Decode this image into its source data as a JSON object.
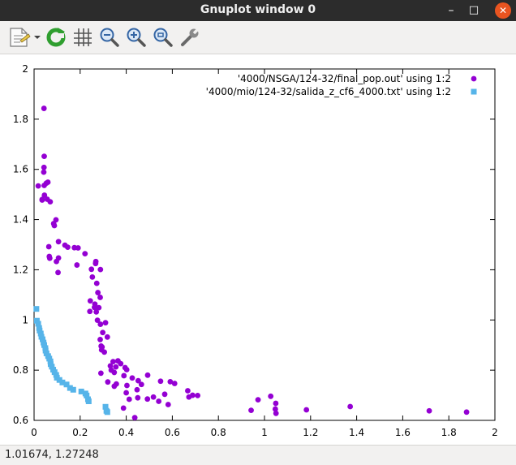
{
  "window": {
    "title": "Gnuplot window 0",
    "minimize_glyph": "–",
    "maximize_glyph": "□",
    "close_glyph": "✕"
  },
  "toolbar": {
    "buttons": [
      {
        "name": "export-menu",
        "icon": "document-export-icon"
      },
      {
        "name": "replot",
        "icon": "refresh-icon"
      },
      {
        "name": "grid",
        "icon": "grid-icon"
      },
      {
        "name": "zoom-prev",
        "icon": "zoom-out-icon"
      },
      {
        "name": "zoom-next",
        "icon": "zoom-in-icon"
      },
      {
        "name": "autoscale",
        "icon": "zoom-fit-icon"
      },
      {
        "name": "settings",
        "icon": "wrench-icon"
      }
    ]
  },
  "status": {
    "coords": "1.01674,  1.27248"
  },
  "colors": {
    "series1": "#9400d3",
    "series2": "#56b4e9",
    "close": "#e95420"
  },
  "chart_data": {
    "type": "scatter",
    "xlim": [
      0,
      2
    ],
    "ylim": [
      0.6,
      2
    ],
    "xticks": [
      0,
      0.2,
      0.4,
      0.6,
      0.8,
      1,
      1.2,
      1.4,
      1.6,
      1.8,
      2
    ],
    "xtick_labels": [
      "0",
      "0.2",
      "0.4",
      "0.6",
      "0.8",
      "1",
      "1.2",
      "1.4",
      "1.6",
      "1.8",
      "2"
    ],
    "yticks": [
      0.6,
      0.8,
      1,
      1.2,
      1.4,
      1.6,
      1.8,
      2
    ],
    "ytick_labels": [
      "0.6",
      "0.8",
      "1",
      "1.2",
      "1.4",
      "1.6",
      "1.8",
      "2"
    ],
    "grid": false,
    "legend_position": "top-right",
    "series": [
      {
        "name": "'4000/NSGA/124-32/final_pop.out' using 1:2",
        "marker": "circle",
        "color": "#9400d3",
        "points": [
          [
            0.043,
            1.843
          ],
          [
            0.044,
            1.652
          ],
          [
            0.043,
            1.608
          ],
          [
            0.042,
            1.589
          ],
          [
            0.018,
            1.534
          ],
          [
            0.053,
            1.545
          ],
          [
            0.044,
            1.536
          ],
          [
            0.06,
            1.549
          ],
          [
            0.045,
            1.497
          ],
          [
            0.035,
            1.478
          ],
          [
            0.057,
            1.481
          ],
          [
            0.07,
            1.471
          ],
          [
            0.035,
            1.48
          ],
          [
            0.095,
            1.399
          ],
          [
            0.085,
            1.384
          ],
          [
            0.088,
            1.376
          ],
          [
            0.064,
            1.292
          ],
          [
            0.106,
            1.312
          ],
          [
            0.134,
            1.298
          ],
          [
            0.146,
            1.29
          ],
          [
            0.066,
            1.253
          ],
          [
            0.068,
            1.246
          ],
          [
            0.106,
            1.247
          ],
          [
            0.097,
            1.233
          ],
          [
            0.191,
            1.287
          ],
          [
            0.175,
            1.288
          ],
          [
            0.104,
            1.189
          ],
          [
            0.186,
            1.219
          ],
          [
            0.221,
            1.264
          ],
          [
            0.268,
            1.233
          ],
          [
            0.267,
            1.225
          ],
          [
            0.249,
            1.202
          ],
          [
            0.288,
            1.201
          ],
          [
            0.253,
            1.171
          ],
          [
            0.272,
            1.146
          ],
          [
            0.277,
            1.109
          ],
          [
            0.287,
            1.09
          ],
          [
            0.244,
            1.076
          ],
          [
            0.264,
            1.063
          ],
          [
            0.262,
            1.05
          ],
          [
            0.281,
            1.049
          ],
          [
            0.27,
            1.032
          ],
          [
            0.242,
            1.034
          ],
          [
            0.275,
            0.999
          ],
          [
            0.288,
            0.983
          ],
          [
            0.31,
            0.989
          ],
          [
            0.298,
            0.95
          ],
          [
            0.318,
            0.932
          ],
          [
            0.287,
            0.922
          ],
          [
            0.291,
            0.896
          ],
          [
            0.293,
            0.881
          ],
          [
            0.305,
            0.872
          ],
          [
            0.295,
            0.892
          ],
          [
            0.364,
            0.837
          ],
          [
            0.343,
            0.834
          ],
          [
            0.331,
            0.817
          ],
          [
            0.335,
            0.8
          ],
          [
            0.355,
            0.813
          ],
          [
            0.348,
            0.791
          ],
          [
            0.376,
            0.826
          ],
          [
            0.395,
            0.81
          ],
          [
            0.29,
            0.788
          ],
          [
            0.39,
            0.778
          ],
          [
            0.402,
            0.802
          ],
          [
            0.32,
            0.753
          ],
          [
            0.357,
            0.745
          ],
          [
            0.426,
            0.769
          ],
          [
            0.452,
            0.758
          ],
          [
            0.403,
            0.739
          ],
          [
            0.4,
            0.71
          ],
          [
            0.447,
            0.722
          ],
          [
            0.493,
            0.78
          ],
          [
            0.466,
            0.743
          ],
          [
            0.348,
            0.736
          ],
          [
            0.413,
            0.684
          ],
          [
            0.45,
            0.69
          ],
          [
            0.549,
            0.756
          ],
          [
            0.591,
            0.754
          ],
          [
            0.61,
            0.747
          ],
          [
            0.567,
            0.704
          ],
          [
            0.518,
            0.693
          ],
          [
            0.492,
            0.685
          ],
          [
            0.541,
            0.676
          ],
          [
            0.582,
            0.663
          ],
          [
            0.667,
            0.718
          ],
          [
            0.688,
            0.7
          ],
          [
            0.672,
            0.693
          ],
          [
            0.71,
            0.699
          ],
          [
            0.388,
            0.649
          ],
          [
            0.437,
            0.611
          ],
          [
            0.942,
            0.64
          ],
          [
            0.972,
            0.682
          ],
          [
            1.027,
            0.696
          ],
          [
            1.049,
            0.668
          ],
          [
            1.047,
            0.645
          ],
          [
            1.05,
            0.628
          ],
          [
            1.182,
            0.642
          ],
          [
            1.372,
            0.655
          ],
          [
            1.715,
            0.638
          ],
          [
            1.877,
            0.633
          ]
        ]
      },
      {
        "name": "'4000/mio/124-32/salida_z_cf6_4000.txt' using 1:2",
        "marker": "square",
        "color": "#56b4e9",
        "points": [
          [
            0.01,
            1.044
          ],
          [
            0.012,
            0.997
          ],
          [
            0.018,
            0.985
          ],
          [
            0.022,
            0.968
          ],
          [
            0.024,
            0.958
          ],
          [
            0.029,
            0.946
          ],
          [
            0.032,
            0.933
          ],
          [
            0.037,
            0.923
          ],
          [
            0.041,
            0.91
          ],
          [
            0.044,
            0.9
          ],
          [
            0.049,
            0.888
          ],
          [
            0.05,
            0.878
          ],
          [
            0.054,
            0.867
          ],
          [
            0.061,
            0.856
          ],
          [
            0.066,
            0.846
          ],
          [
            0.071,
            0.835
          ],
          [
            0.072,
            0.824
          ],
          [
            0.077,
            0.814
          ],
          [
            0.083,
            0.802
          ],
          [
            0.089,
            0.792
          ],
          [
            0.096,
            0.781
          ],
          [
            0.099,
            0.77
          ],
          [
            0.11,
            0.761
          ],
          [
            0.123,
            0.751
          ],
          [
            0.141,
            0.743
          ],
          [
            0.156,
            0.729
          ],
          [
            0.17,
            0.722
          ],
          [
            0.205,
            0.715
          ],
          [
            0.223,
            0.707
          ],
          [
            0.228,
            0.699
          ],
          [
            0.234,
            0.684
          ],
          [
            0.237,
            0.676
          ],
          [
            0.31,
            0.654
          ],
          [
            0.314,
            0.638
          ],
          [
            0.318,
            0.633
          ]
        ]
      }
    ]
  }
}
